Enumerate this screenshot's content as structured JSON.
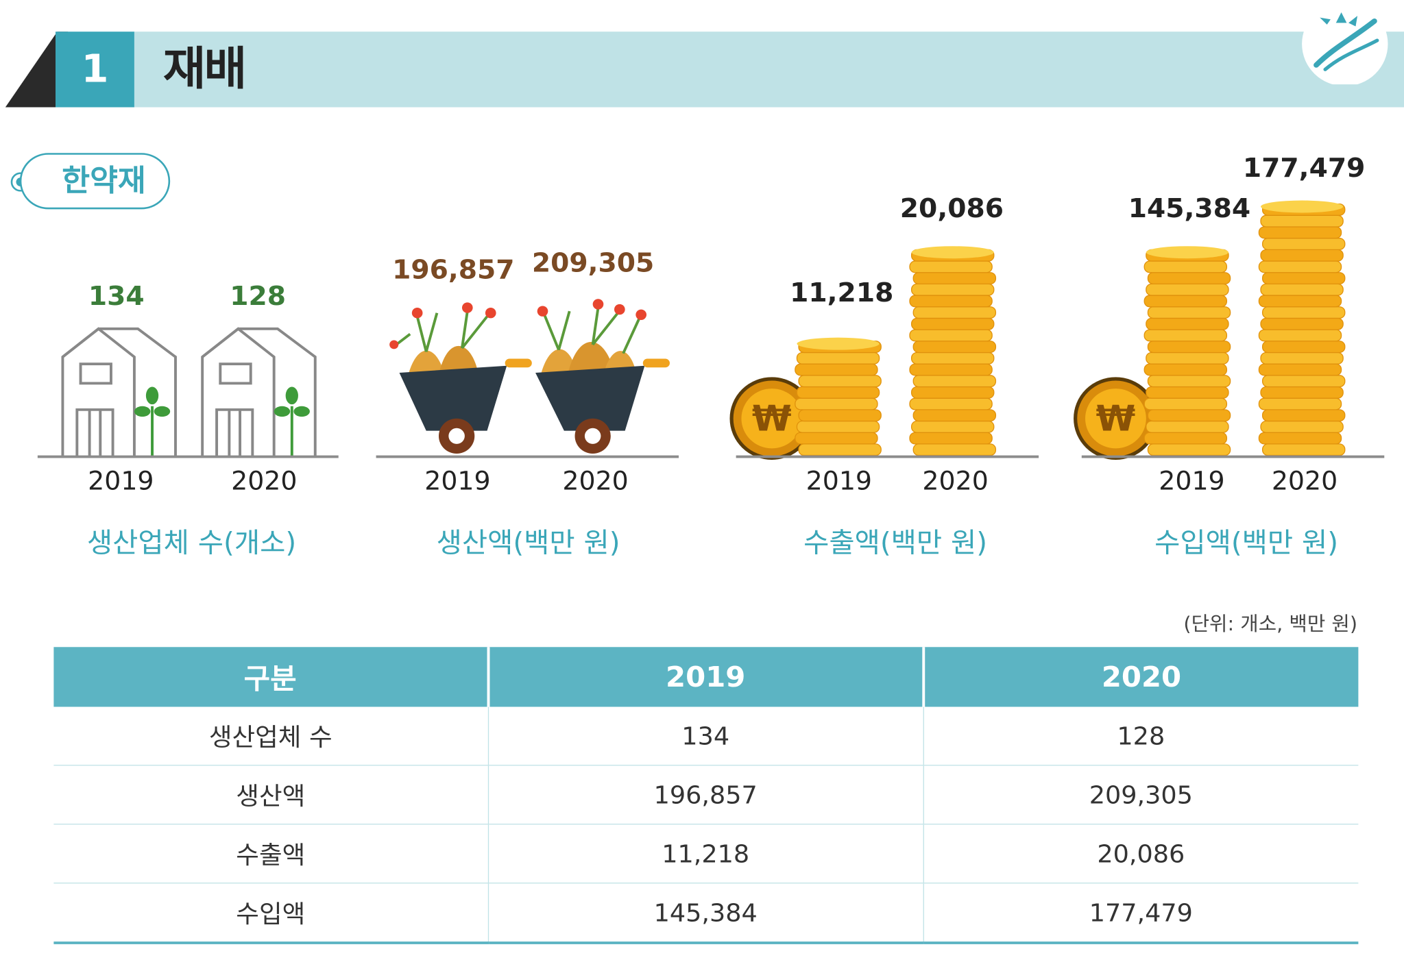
{
  "header": {
    "number": "1",
    "title": "재배"
  },
  "category": "한약재",
  "chart_data": [
    {
      "type": "bar",
      "title": "생산업체 수(개소)",
      "categories": [
        "2019",
        "2020"
      ],
      "values": [
        134,
        128
      ],
      "value_labels": [
        "134",
        "128"
      ],
      "pictogram": "greenhouse"
    },
    {
      "type": "bar",
      "title": "생산액(백만 원)",
      "categories": [
        "2019",
        "2020"
      ],
      "values": [
        196857,
        209305
      ],
      "value_labels": [
        "196,857",
        "209,305"
      ],
      "pictogram": "wheelbarrow"
    },
    {
      "type": "bar",
      "title": "수출액(백만 원)",
      "categories": [
        "2019",
        "2020"
      ],
      "values": [
        11218,
        20086
      ],
      "value_labels": [
        "11,218",
        "20,086"
      ],
      "pictogram": "coin-stack"
    },
    {
      "type": "bar",
      "title": "수입액(백만 원)",
      "categories": [
        "2019",
        "2020"
      ],
      "values": [
        145384,
        177479
      ],
      "value_labels": [
        "145,384",
        "177,479"
      ],
      "pictogram": "coin-stack"
    }
  ],
  "table": {
    "unit": "(단위: 개소, 백만 원)",
    "headers": [
      "구분",
      "2019",
      "2020"
    ],
    "rows": [
      [
        "생산업체 수",
        "134",
        "128"
      ],
      [
        "생산액",
        "196,857",
        "209,305"
      ],
      [
        "수출액",
        "11,218",
        "20,086"
      ],
      [
        "수입액",
        "145,384",
        "177,479"
      ]
    ]
  },
  "colors": {
    "accent": "#3aa6b8",
    "header_band": "#bfe2e6",
    "table_header": "#5cb4c3",
    "coin": "#f6b21b",
    "green_value": "#3b7d3a",
    "brown_value": "#7a4a24"
  }
}
